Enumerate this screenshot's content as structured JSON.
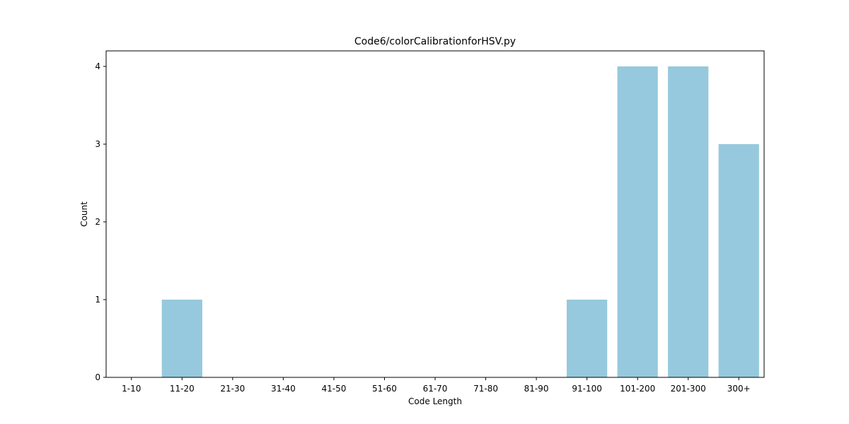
{
  "chart_data": {
    "type": "bar",
    "title": "Code6/colorCalibrationforHSV.py",
    "xlabel": "Code Length",
    "ylabel": "Count",
    "categories": [
      "1-10",
      "11-20",
      "21-30",
      "31-40",
      "41-50",
      "51-60",
      "61-70",
      "71-80",
      "81-90",
      "91-100",
      "101-200",
      "201-300",
      "300+"
    ],
    "values": [
      0,
      1,
      0,
      0,
      0,
      0,
      0,
      0,
      0,
      1,
      4,
      4,
      3
    ],
    "ylim": [
      0,
      4.2
    ],
    "yticks": [
      0,
      1,
      2,
      3,
      4
    ],
    "bar_color": "#96c9dd",
    "grid": false,
    "legend": "none"
  }
}
